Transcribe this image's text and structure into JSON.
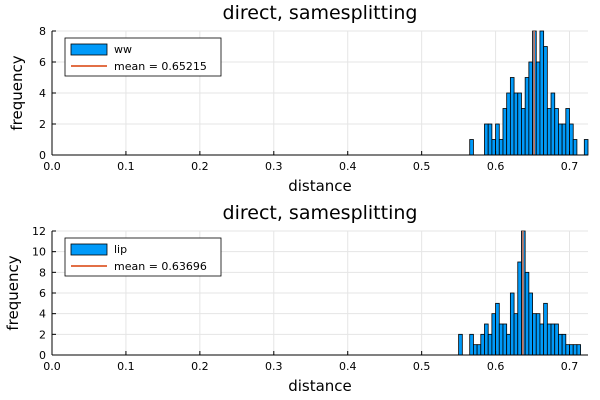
{
  "chart_data": [
    {
      "type": "bar",
      "title": "direct, samesplitting",
      "xlabel": "distance",
      "ylabel": "frequency",
      "xlim": [
        0.0,
        0.725
      ],
      "ylim": [
        0,
        8
      ],
      "xticks": [
        "0.0",
        "0.1",
        "0.2",
        "0.3",
        "0.4",
        "0.5",
        "0.6",
        "0.7"
      ],
      "yticks": [
        "0",
        "2",
        "4",
        "6",
        "8"
      ],
      "grid": true,
      "legend_position": "top-left",
      "bin_width": 0.005,
      "series": [
        {
          "name": "ww",
          "color": "#009af9",
          "bins": [
            {
              "x": 0.565,
              "count": 1
            },
            {
              "x": 0.585,
              "count": 2
            },
            {
              "x": 0.59,
              "count": 2
            },
            {
              "x": 0.595,
              "count": 1
            },
            {
              "x": 0.6,
              "count": 2
            },
            {
              "x": 0.605,
              "count": 1
            },
            {
              "x": 0.61,
              "count": 3
            },
            {
              "x": 0.615,
              "count": 4
            },
            {
              "x": 0.62,
              "count": 5
            },
            {
              "x": 0.625,
              "count": 4
            },
            {
              "x": 0.63,
              "count": 4
            },
            {
              "x": 0.635,
              "count": 3
            },
            {
              "x": 0.64,
              "count": 5
            },
            {
              "x": 0.645,
              "count": 6
            },
            {
              "x": 0.65,
              "count": 8
            },
            {
              "x": 0.655,
              "count": 6
            },
            {
              "x": 0.66,
              "count": 8
            },
            {
              "x": 0.665,
              "count": 7
            },
            {
              "x": 0.67,
              "count": 3
            },
            {
              "x": 0.675,
              "count": 4
            },
            {
              "x": 0.68,
              "count": 3
            },
            {
              "x": 0.685,
              "count": 2
            },
            {
              "x": 0.69,
              "count": 2
            },
            {
              "x": 0.695,
              "count": 3
            },
            {
              "x": 0.7,
              "count": 2
            },
            {
              "x": 0.705,
              "count": 1
            },
            {
              "x": 0.72,
              "count": 1
            }
          ]
        },
        {
          "name": "mean = 0.65215",
          "color": "#e26f46",
          "type": "vline",
          "value": 0.65215
        }
      ]
    },
    {
      "type": "bar",
      "title": "direct, samesplitting",
      "xlabel": "distance",
      "ylabel": "frequency",
      "xlim": [
        0.0,
        0.725
      ],
      "ylim": [
        0,
        12
      ],
      "xticks": [
        "0.0",
        "0.1",
        "0.2",
        "0.3",
        "0.4",
        "0.5",
        "0.6",
        "0.7"
      ],
      "yticks": [
        "0",
        "2",
        "4",
        "6",
        "8",
        "10",
        "12"
      ],
      "grid": true,
      "legend_position": "top-left",
      "bin_width": 0.005,
      "series": [
        {
          "name": "lip",
          "color": "#009af9",
          "bins": [
            {
              "x": 0.55,
              "count": 2
            },
            {
              "x": 0.565,
              "count": 2
            },
            {
              "x": 0.57,
              "count": 1
            },
            {
              "x": 0.575,
              "count": 1
            },
            {
              "x": 0.58,
              "count": 2
            },
            {
              "x": 0.585,
              "count": 3
            },
            {
              "x": 0.59,
              "count": 2
            },
            {
              "x": 0.595,
              "count": 4
            },
            {
              "x": 0.6,
              "count": 5
            },
            {
              "x": 0.605,
              "count": 3
            },
            {
              "x": 0.61,
              "count": 3
            },
            {
              "x": 0.615,
              "count": 2
            },
            {
              "x": 0.62,
              "count": 6
            },
            {
              "x": 0.625,
              "count": 4
            },
            {
              "x": 0.63,
              "count": 9
            },
            {
              "x": 0.635,
              "count": 12
            },
            {
              "x": 0.64,
              "count": 8
            },
            {
              "x": 0.645,
              "count": 6
            },
            {
              "x": 0.65,
              "count": 4
            },
            {
              "x": 0.655,
              "count": 4
            },
            {
              "x": 0.66,
              "count": 3
            },
            {
              "x": 0.665,
              "count": 5
            },
            {
              "x": 0.67,
              "count": 3
            },
            {
              "x": 0.675,
              "count": 3
            },
            {
              "x": 0.68,
              "count": 3
            },
            {
              "x": 0.685,
              "count": 2
            },
            {
              "x": 0.69,
              "count": 2
            },
            {
              "x": 0.695,
              "count": 1
            },
            {
              "x": 0.7,
              "count": 1
            },
            {
              "x": 0.705,
              "count": 1
            },
            {
              "x": 0.71,
              "count": 1
            }
          ]
        },
        {
          "name": "mean = 0.63696",
          "color": "#e26f46",
          "type": "vline",
          "value": 0.63696
        }
      ]
    }
  ]
}
